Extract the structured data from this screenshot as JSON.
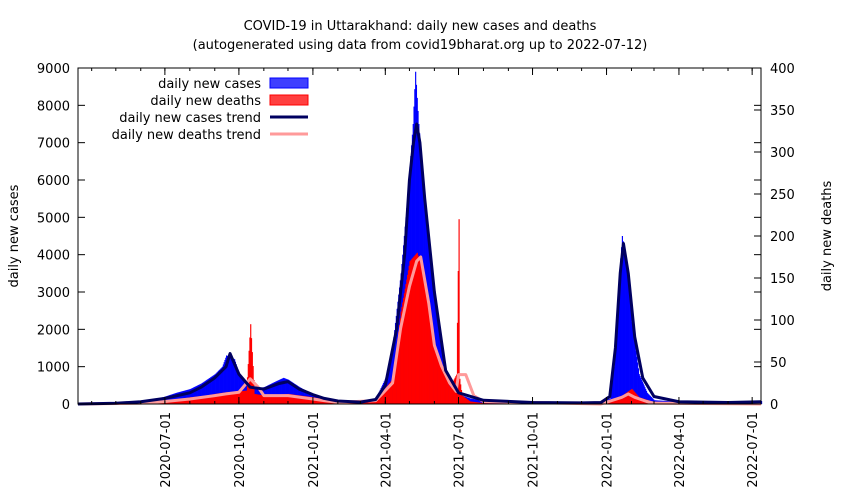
{
  "chart_data": {
    "type": "bar",
    "title": "COVID-19 in Uttarakhand: daily new cases and deaths",
    "subtitle": "(autogenerated using data from covid19bharat.org up to 2022-07-12)",
    "ylabel": "daily new cases",
    "y2label": "daily new deaths",
    "ylim": [
      0,
      9000
    ],
    "y2lim": [
      0,
      400
    ],
    "yticks": [
      "0",
      "1000",
      "2000",
      "3000",
      "4000",
      "5000",
      "6000",
      "7000",
      "8000",
      "9000"
    ],
    "y2ticks": [
      "0",
      "50",
      "100",
      "150",
      "200",
      "250",
      "300",
      "350",
      "400"
    ],
    "xlim": [
      "2020-03-15",
      "2022-07-12"
    ],
    "xticks": [
      "2020-07-01",
      "2020-10-01",
      "2021-01-01",
      "2021-04-01",
      "2021-07-01",
      "2021-10-01",
      "2022-01-01",
      "2022-04-01",
      "2022-07-01"
    ],
    "legend_position": "top-left",
    "legend": {
      "cases": "daily new cases",
      "deaths": "daily new deaths",
      "cases_trend": "daily new cases trend",
      "deaths_trend": "daily new deaths trend"
    },
    "colors": {
      "cases": "#0000ff",
      "deaths": "#ff0000",
      "cases_trend": "#000060",
      "deaths_trend": "#ff9a9a"
    },
    "series": [
      {
        "name": "daily new cases",
        "axis": "left",
        "dates": [
          "2020-03-15",
          "2020-05-01",
          "2020-06-01",
          "2020-06-15",
          "2020-07-01",
          "2020-07-15",
          "2020-08-01",
          "2020-08-15",
          "2020-09-01",
          "2020-09-10",
          "2020-09-15",
          "2020-09-25",
          "2020-10-01",
          "2020-10-10",
          "2020-10-20",
          "2020-11-01",
          "2020-11-15",
          "2020-11-25",
          "2020-12-01",
          "2020-12-15",
          "2021-01-01",
          "2021-01-15",
          "2021-02-01",
          "2021-03-01",
          "2021-03-20",
          "2021-04-01",
          "2021-04-10",
          "2021-04-20",
          "2021-04-28",
          "2021-05-05",
          "2021-05-08",
          "2021-05-12",
          "2021-05-20",
          "2021-06-01",
          "2021-06-10",
          "2021-06-20",
          "2021-07-01",
          "2021-07-15",
          "2021-08-01",
          "2021-10-01",
          "2021-12-01",
          "2021-12-25",
          "2022-01-05",
          "2022-01-10",
          "2022-01-15",
          "2022-01-20",
          "2022-01-25",
          "2022-02-01",
          "2022-02-10",
          "2022-02-20",
          "2022-03-01",
          "2022-04-01",
          "2022-06-01",
          "2022-07-12"
        ],
        "values": [
          0,
          30,
          80,
          100,
          200,
          300,
          400,
          550,
          800,
          1000,
          1300,
          1200,
          800,
          550,
          420,
          450,
          600,
          700,
          650,
          450,
          250,
          150,
          90,
          60,
          150,
          700,
          1600,
          3500,
          5500,
          7500,
          8900,
          7500,
          5500,
          3000,
          1300,
          600,
          250,
          150,
          80,
          40,
          30,
          40,
          150,
          1000,
          3000,
          4500,
          3800,
          2200,
          800,
          300,
          100,
          60,
          50,
          80
        ]
      },
      {
        "name": "daily new deaths",
        "axis": "right",
        "dates": [
          "2020-03-15",
          "2020-06-01",
          "2020-07-01",
          "2020-08-01",
          "2020-08-20",
          "2020-09-01",
          "2020-09-15",
          "2020-10-01",
          "2020-10-10",
          "2020-10-15",
          "2020-10-20",
          "2020-11-01",
          "2020-12-01",
          "2021-01-01",
          "2021-01-15",
          "2021-02-01",
          "2021-03-20",
          "2021-04-10",
          "2021-04-20",
          "2021-05-01",
          "2021-05-10",
          "2021-05-20",
          "2021-06-01",
          "2021-06-10",
          "2021-06-20",
          "2021-06-28",
          "2021-07-01",
          "2021-07-02",
          "2021-07-05",
          "2021-07-15",
          "2021-08-01",
          "2021-12-25",
          "2022-01-20",
          "2022-02-01",
          "2022-02-10",
          "2022-03-01",
          "2022-07-12"
        ],
        "values": [
          0,
          1,
          3,
          8,
          10,
          12,
          14,
          15,
          16,
          95,
          12,
          10,
          12,
          8,
          5,
          2,
          5,
          30,
          110,
          170,
          180,
          150,
          70,
          40,
          20,
          35,
          220,
          30,
          10,
          3,
          1,
          0,
          10,
          18,
          8,
          2,
          0
        ]
      },
      {
        "name": "daily new cases trend",
        "axis": "left",
        "dates": [
          "2020-03-15",
          "2020-05-01",
          "2020-06-01",
          "2020-07-01",
          "2020-08-01",
          "2020-08-15",
          "2020-09-01",
          "2020-09-15",
          "2020-09-20",
          "2020-10-01",
          "2020-10-15",
          "2020-11-01",
          "2020-11-20",
          "2020-12-01",
          "2020-12-15",
          "2021-01-01",
          "2021-01-15",
          "2021-02-01",
          "2021-03-01",
          "2021-03-20",
          "2021-04-01",
          "2021-04-15",
          "2021-04-25",
          "2021-05-01",
          "2021-05-06",
          "2021-05-10",
          "2021-05-14",
          "2021-05-20",
          "2021-06-01",
          "2021-06-15",
          "2021-07-01",
          "2021-08-01",
          "2021-10-01",
          "2021-12-01",
          "2021-12-25",
          "2022-01-05",
          "2022-01-12",
          "2022-01-18",
          "2022-01-22",
          "2022-01-28",
          "2022-02-05",
          "2022-02-15",
          "2022-03-01",
          "2022-04-01",
          "2022-06-01",
          "2022-07-12"
        ],
        "values": [
          0,
          20,
          60,
          150,
          300,
          450,
          700,
          1000,
          1350,
          800,
          450,
          400,
          550,
          600,
          400,
          250,
          150,
          80,
          50,
          120,
          500,
          2000,
          4000,
          6000,
          7000,
          7500,
          7000,
          5500,
          3000,
          900,
          300,
          100,
          40,
          30,
          40,
          200,
          1500,
          3500,
          4300,
          3500,
          1800,
          700,
          200,
          60,
          40,
          60
        ]
      },
      {
        "name": "daily new deaths trend",
        "axis": "right",
        "dates": [
          "2020-03-15",
          "2020-06-01",
          "2020-07-01",
          "2020-08-01",
          "2020-09-01",
          "2020-09-15",
          "2020-10-01",
          "2020-10-15",
          "2020-10-25",
          "2020-11-01",
          "2020-12-01",
          "2021-01-01",
          "2021-01-15",
          "2021-02-01",
          "2021-03-20",
          "2021-04-10",
          "2021-04-20",
          "2021-05-01",
          "2021-05-10",
          "2021-05-15",
          "2021-05-25",
          "2021-06-01",
          "2021-06-10",
          "2021-06-20",
          "2021-06-28",
          "2021-07-01",
          "2021-07-10",
          "2021-07-20",
          "2021-08-01",
          "2021-12-25",
          "2022-01-20",
          "2022-01-28",
          "2022-02-05",
          "2022-02-20",
          "2022-03-01",
          "2022-07-12"
        ],
        "values": [
          0,
          1,
          3,
          6,
          10,
          12,
          14,
          30,
          20,
          10,
          10,
          6,
          4,
          2,
          4,
          25,
          90,
          140,
          170,
          175,
          120,
          70,
          45,
          25,
          15,
          35,
          35,
          10,
          3,
          0,
          8,
          12,
          8,
          3,
          1,
          0
        ]
      }
    ]
  }
}
